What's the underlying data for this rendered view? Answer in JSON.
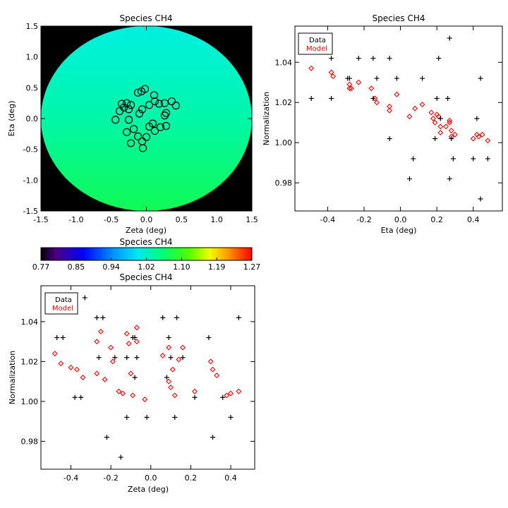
{
  "colors": {
    "axis": "#000000",
    "data_marker": "#000000",
    "model_marker": "#ff0000",
    "mask": "#000000",
    "circle_marker": "#000000"
  },
  "chart_data": [
    {
      "id": "map",
      "type": "heatmap",
      "title": "Species CH4",
      "xlabel": "Zeta (deg)",
      "ylabel": "Eta (deg)",
      "xlim": [
        -1.5,
        1.5
      ],
      "ylim": [
        -1.5,
        1.5
      ],
      "xticks": [
        "-1.5",
        "-1.0",
        "-0.5",
        "0.0",
        "0.5",
        "1.0",
        "1.5"
      ],
      "yticks": [
        "-1.5",
        "-1.0",
        "-0.5",
        "0.0",
        "0.5",
        "1.0",
        "1.5"
      ],
      "disk_radius_deg": 1.5,
      "field_value_range": [
        1.0,
        1.05
      ],
      "background": "black",
      "points": [
        [
          -0.44,
          -0.02
        ],
        [
          -0.38,
          0.12
        ],
        [
          -0.32,
          0.18
        ],
        [
          -0.28,
          0.25
        ],
        [
          -0.22,
          0.22
        ],
        [
          -0.35,
          0.24
        ],
        [
          -0.12,
          0.42
        ],
        [
          -0.07,
          0.44
        ],
        [
          -0.02,
          0.48
        ],
        [
          -0.25,
          0.15
        ],
        [
          -0.1,
          0.08
        ],
        [
          -0.06,
          0.15
        ],
        [
          0.04,
          0.22
        ],
        [
          0.12,
          0.28
        ],
        [
          0.26,
          0.25
        ],
        [
          0.36,
          0.28
        ],
        [
          0.42,
          0.21
        ],
        [
          0.28,
          0.09
        ],
        [
          0.11,
          0.38
        ],
        [
          0.18,
          0.24
        ],
        [
          -0.25,
          -0.02
        ],
        [
          -0.28,
          -0.22
        ],
        [
          -0.18,
          -0.17
        ],
        [
          -0.12,
          -0.29
        ],
        [
          -0.06,
          -0.37
        ],
        [
          -0.05,
          -0.48
        ],
        [
          -0.22,
          -0.4
        ],
        [
          0.09,
          -0.08
        ],
        [
          0.12,
          -0.2
        ],
        [
          0.2,
          -0.14
        ],
        [
          0.28,
          -0.12
        ],
        [
          0.26,
          0.05
        ],
        [
          0.04,
          -0.13
        ],
        [
          0.0,
          -0.3
        ]
      ]
    },
    {
      "id": "colorbar",
      "type": "heatmap",
      "title": "Species CH4",
      "range": [
        0.77,
        1.27
      ],
      "ticks": [
        "0.77",
        "0.85",
        "0.94",
        "1.02",
        "1.10",
        "1.19",
        "1.27"
      ]
    },
    {
      "id": "eta",
      "type": "scatter",
      "title": "Species CH4",
      "xlabel": "Eta (deg)",
      "ylabel": "Normalization",
      "xlim": [
        -0.58,
        0.56
      ],
      "ylim": [
        0.966,
        1.058
      ],
      "xticks": [
        -0.4,
        -0.2,
        0.0,
        0.2,
        0.4
      ],
      "xtick_labels": [
        "-0.4",
        "-0.2",
        "0.0",
        "0.2",
        "0.4"
      ],
      "yticks": [
        0.98,
        1.0,
        1.02,
        1.04
      ],
      "ytick_labels": [
        "0.98",
        "1.00",
        "1.02",
        "1.04"
      ],
      "legend": {
        "position": "top-left",
        "entries": [
          "Data",
          "Model"
        ]
      },
      "series": [
        {
          "name": "Data",
          "marker": "plus",
          "points": [
            [
              -0.49,
              1.022
            ],
            [
              -0.38,
              1.042
            ],
            [
              -0.38,
              1.022
            ],
            [
              -0.29,
              1.032
            ],
            [
              -0.28,
              1.032
            ],
            [
              -0.23,
              1.042
            ],
            [
              -0.15,
              1.042
            ],
            [
              -0.15,
              1.022
            ],
            [
              -0.13,
              1.032
            ],
            [
              -0.06,
              1.042
            ],
            [
              -0.06,
              1.002
            ],
            [
              -0.02,
              1.032
            ],
            [
              0.05,
              0.982
            ],
            [
              0.07,
              0.992
            ],
            [
              0.12,
              1.032
            ],
            [
              0.19,
              1.002
            ],
            [
              0.2,
              1.022
            ],
            [
              0.21,
              1.042
            ],
            [
              0.22,
              1.012
            ],
            [
              0.26,
              1.022
            ],
            [
              0.27,
              1.052
            ],
            [
              0.27,
              0.982
            ],
            [
              0.28,
              1.002
            ],
            [
              0.29,
              0.992
            ],
            [
              0.4,
              0.992
            ],
            [
              0.42,
              1.012
            ],
            [
              0.44,
              1.032
            ],
            [
              0.44,
              0.972
            ],
            [
              0.48,
              0.992
            ]
          ]
        },
        {
          "name": "Model",
          "marker": "diamond",
          "points": [
            [
              -0.49,
              1.037
            ],
            [
              -0.38,
              1.035
            ],
            [
              -0.37,
              1.033
            ],
            [
              -0.28,
              1.029
            ],
            [
              -0.28,
              1.027
            ],
            [
              -0.27,
              1.027
            ],
            [
              -0.23,
              1.03
            ],
            [
              -0.16,
              1.027
            ],
            [
              -0.14,
              1.022
            ],
            [
              -0.13,
              1.02
            ],
            [
              -0.06,
              1.018
            ],
            [
              -0.06,
              1.016
            ],
            [
              -0.02,
              1.024
            ],
            [
              0.05,
              1.013
            ],
            [
              0.08,
              1.017
            ],
            [
              0.12,
              1.019
            ],
            [
              0.17,
              1.015
            ],
            [
              0.18,
              1.012
            ],
            [
              0.19,
              1.01
            ],
            [
              0.2,
              1.014
            ],
            [
              0.21,
              1.013
            ],
            [
              0.22,
              1.008
            ],
            [
              0.22,
              1.005
            ],
            [
              0.25,
              1.008
            ],
            [
              0.27,
              1.011
            ],
            [
              0.27,
              1.01
            ],
            [
              0.28,
              1.003
            ],
            [
              0.28,
              1.006
            ],
            [
              0.3,
              1.004
            ],
            [
              0.4,
              1.002
            ],
            [
              0.42,
              1.004
            ],
            [
              0.43,
              1.003
            ],
            [
              0.45,
              1.004
            ],
            [
              0.48,
              1.001
            ]
          ]
        }
      ]
    },
    {
      "id": "zeta",
      "type": "scatter",
      "title": "Species CH4",
      "xlabel": "Zeta (deg)",
      "ylabel": "Normalization",
      "xlim": [
        -0.55,
        0.52
      ],
      "ylim": [
        0.966,
        1.058
      ],
      "xticks": [
        -0.4,
        -0.2,
        0.0,
        0.2,
        0.4
      ],
      "xtick_labels": [
        "-0.4",
        "-0.2",
        "0.0",
        "0.2",
        "0.4"
      ],
      "yticks": [
        0.98,
        1.0,
        1.02,
        1.04
      ],
      "ytick_labels": [
        "0.98",
        "1.00",
        "1.02",
        "1.04"
      ],
      "legend": {
        "position": "top-left",
        "entries": [
          "Data",
          "Model"
        ]
      },
      "series": [
        {
          "name": "Data",
          "marker": "plus",
          "points": [
            [
              -0.47,
              1.032
            ],
            [
              -0.44,
              1.032
            ],
            [
              -0.38,
              1.002
            ],
            [
              -0.35,
              1.002
            ],
            [
              -0.33,
              1.052
            ],
            [
              -0.27,
              1.042
            ],
            [
              -0.26,
              1.022
            ],
            [
              -0.24,
              1.042
            ],
            [
              -0.22,
              0.982
            ],
            [
              -0.18,
              1.022
            ],
            [
              -0.15,
              0.972
            ],
            [
              -0.12,
              1.022
            ],
            [
              -0.12,
              0.992
            ],
            [
              -0.09,
              1.032
            ],
            [
              -0.08,
              1.032
            ],
            [
              -0.08,
              1.012
            ],
            [
              -0.07,
              1.022
            ],
            [
              -0.02,
              0.992
            ],
            [
              0.06,
              1.042
            ],
            [
              0.08,
              1.012
            ],
            [
              0.09,
              1.032
            ],
            [
              0.1,
              1.022
            ],
            [
              0.12,
              0.992
            ],
            [
              0.13,
              1.042
            ],
            [
              0.16,
              1.022
            ],
            [
              0.22,
              1.002
            ],
            [
              0.29,
              1.032
            ],
            [
              0.31,
              0.982
            ],
            [
              0.36,
              1.002
            ],
            [
              0.4,
              0.992
            ],
            [
              0.44,
              1.042
            ]
          ]
        },
        {
          "name": "Model",
          "marker": "diamond",
          "points": [
            [
              -0.48,
              1.024
            ],
            [
              -0.45,
              1.019
            ],
            [
              -0.4,
              1.017
            ],
            [
              -0.37,
              1.016
            ],
            [
              -0.34,
              1.012
            ],
            [
              -0.27,
              1.03
            ],
            [
              -0.25,
              1.035
            ],
            [
              -0.27,
              1.014
            ],
            [
              -0.23,
              1.011
            ],
            [
              -0.2,
              1.027
            ],
            [
              -0.19,
              1.02
            ],
            [
              -0.16,
              1.005
            ],
            [
              -0.14,
              1.004
            ],
            [
              -0.12,
              1.034
            ],
            [
              -0.11,
              1.029
            ],
            [
              -0.1,
              1.014
            ],
            [
              -0.09,
              1.003
            ],
            [
              -0.07,
              1.037
            ],
            [
              -0.07,
              1.03
            ],
            [
              -0.03,
              1.001
            ],
            [
              0.06,
              1.023
            ],
            [
              0.09,
              1.027
            ],
            [
              0.09,
              1.01
            ],
            [
              0.1,
              1.007
            ],
            [
              0.11,
              1.016
            ],
            [
              0.12,
              1.003
            ],
            [
              0.14,
              1.021
            ],
            [
              0.16,
              1.027
            ],
            [
              0.22,
              1.005
            ],
            [
              0.3,
              1.02
            ],
            [
              0.31,
              1.016
            ],
            [
              0.33,
              1.013
            ],
            [
              0.38,
              1.003
            ],
            [
              0.4,
              1.004
            ],
            [
              0.44,
              1.005
            ]
          ]
        }
      ]
    }
  ]
}
